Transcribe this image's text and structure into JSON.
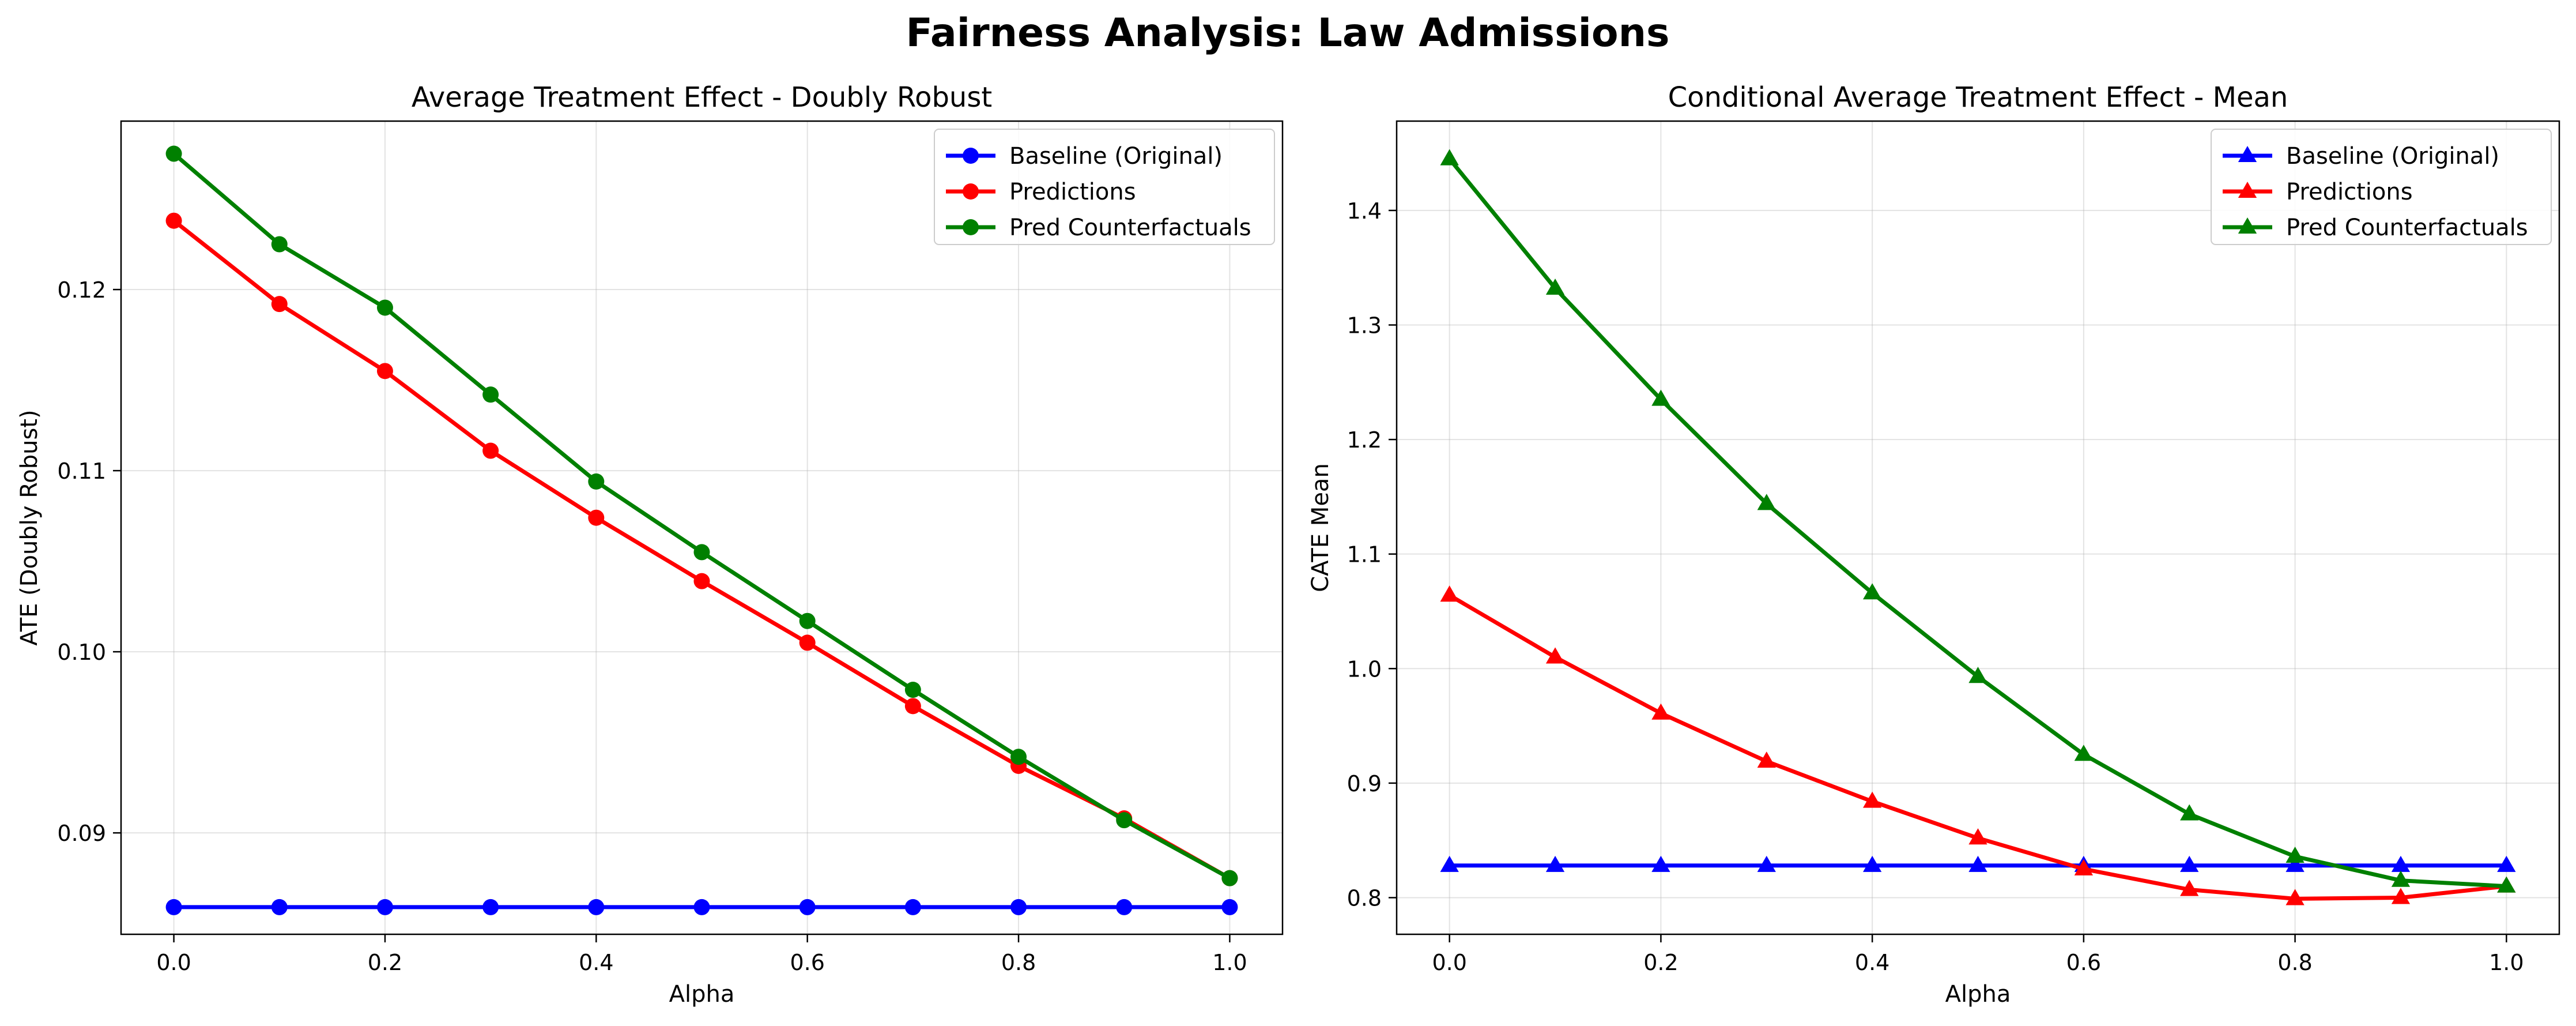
{
  "figure": {
    "title": "Fairness Analysis: Law Admissions"
  },
  "chart_data": [
    {
      "type": "line",
      "title": "Average Treatment Effect - Doubly Robust",
      "xlabel": "Alpha",
      "ylabel": "ATE (Doubly Robust)",
      "x": [
        0.0,
        0.1,
        0.2,
        0.3,
        0.4,
        0.5,
        0.6,
        0.7,
        0.8,
        0.9,
        1.0
      ],
      "xlim": [
        -0.05,
        1.05
      ],
      "ylim": [
        0.0844,
        0.1293
      ],
      "xticks": [
        0.0,
        0.2,
        0.4,
        0.6,
        0.8,
        1.0
      ],
      "xtick_labels": [
        "0.0",
        "0.2",
        "0.4",
        "0.6",
        "0.8",
        "1.0"
      ],
      "yticks": [
        0.09,
        0.1,
        0.11,
        0.12
      ],
      "ytick_labels": [
        "0.09",
        "0.10",
        "0.11",
        "0.12"
      ],
      "grid": true,
      "legend_position": "top-right",
      "marker": "circle",
      "series": [
        {
          "name": "Baseline (Original)",
          "color": "#0000ff",
          "values": [
            0.0859,
            0.0859,
            0.0859,
            0.0859,
            0.0859,
            0.0859,
            0.0859,
            0.0859,
            0.0859,
            0.0859,
            0.0859
          ]
        },
        {
          "name": "Predictions",
          "color": "#ff0000",
          "values": [
            0.1238,
            0.1192,
            0.1155,
            0.1111,
            0.1074,
            0.1039,
            0.1005,
            0.097,
            0.0937,
            0.0908,
            0.0875
          ]
        },
        {
          "name": "Pred Counterfactuals",
          "color": "#008000",
          "values": [
            0.1275,
            0.1225,
            0.119,
            0.1142,
            0.1094,
            0.1055,
            0.1017,
            0.0979,
            0.0942,
            0.0907,
            0.0875
          ]
        }
      ]
    },
    {
      "type": "line",
      "title": "Conditional Average Treatment Effect - Mean",
      "xlabel": "Alpha",
      "ylabel": "CATE Mean",
      "x": [
        0.0,
        0.1,
        0.2,
        0.3,
        0.4,
        0.5,
        0.6,
        0.7,
        0.8,
        0.9,
        1.0
      ],
      "xlim": [
        -0.05,
        1.05
      ],
      "ylim": [
        0.768,
        1.478
      ],
      "xticks": [
        0.0,
        0.2,
        0.4,
        0.6,
        0.8,
        1.0
      ],
      "xtick_labels": [
        "0.0",
        "0.2",
        "0.4",
        "0.6",
        "0.8",
        "1.0"
      ],
      "yticks": [
        0.8,
        0.9,
        1.0,
        1.1,
        1.2,
        1.3,
        1.4
      ],
      "ytick_labels": [
        "0.8",
        "0.9",
        "1.0",
        "1.1",
        "1.2",
        "1.3",
        "1.4"
      ],
      "grid": true,
      "legend_position": "top-right",
      "marker": "triangle",
      "series": [
        {
          "name": "Baseline (Original)",
          "color": "#0000ff",
          "values": [
            0.828,
            0.828,
            0.828,
            0.828,
            0.828,
            0.828,
            0.828,
            0.828,
            0.828,
            0.828,
            0.828
          ]
        },
        {
          "name": "Predictions",
          "color": "#ff0000",
          "values": [
            1.064,
            1.01,
            0.961,
            0.919,
            0.884,
            0.852,
            0.825,
            0.807,
            0.799,
            0.8,
            0.81
          ]
        },
        {
          "name": "Pred Counterfactuals",
          "color": "#008000",
          "values": [
            1.445,
            1.332,
            1.235,
            1.144,
            1.066,
            0.993,
            0.925,
            0.873,
            0.836,
            0.815,
            0.81
          ]
        }
      ]
    }
  ]
}
